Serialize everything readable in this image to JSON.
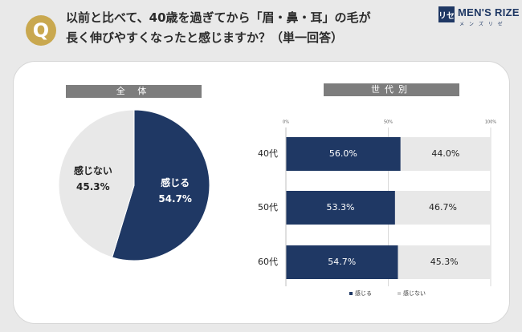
{
  "header": {
    "badge": "Q",
    "question_line1": "以前と比べて、40歳を過ぎてから「眉・鼻・耳」の毛が",
    "question_line2": "長く伸びやすくなったと感じますか？（単一回答）"
  },
  "logo": {
    "mark": "リセ",
    "name": "MEN'S RIZE",
    "sub": "メ ン ズ リ ゼ"
  },
  "colors": {
    "feel": "#1f3864",
    "not_feel": "#e8e8e8",
    "label_bg": "#7d7d7d",
    "badge": "#c9a84f",
    "background": "#e9e9e9"
  },
  "pie": {
    "section_label": "全 体"
  },
  "generation": {
    "section_label": "世代別"
  },
  "chart_data": [
    {
      "type": "pie",
      "title": "全 体",
      "slices": [
        {
          "label": "感じる",
          "value": 54.7,
          "display": "54.7%"
        },
        {
          "label": "感じない",
          "value": 45.3,
          "display": "45.3%"
        }
      ]
    },
    {
      "type": "bar",
      "orientation": "horizontal",
      "stacked": true,
      "title": "世代別",
      "categories": [
        "40代",
        "50代",
        "60代"
      ],
      "series": [
        {
          "name": "感じる",
          "values": [
            56.0,
            53.3,
            54.7
          ],
          "labels": [
            "56.0%",
            "53.3%",
            "54.7%"
          ]
        },
        {
          "name": "感じない",
          "values": [
            44.0,
            46.7,
            45.3
          ],
          "labels": [
            "44.0%",
            "46.7%",
            "45.3%"
          ]
        }
      ],
      "xlim": [
        0,
        100
      ],
      "x_ticks": [
        "0%",
        "50%",
        "100%"
      ],
      "grid": true,
      "legend_position": "bottom"
    }
  ]
}
